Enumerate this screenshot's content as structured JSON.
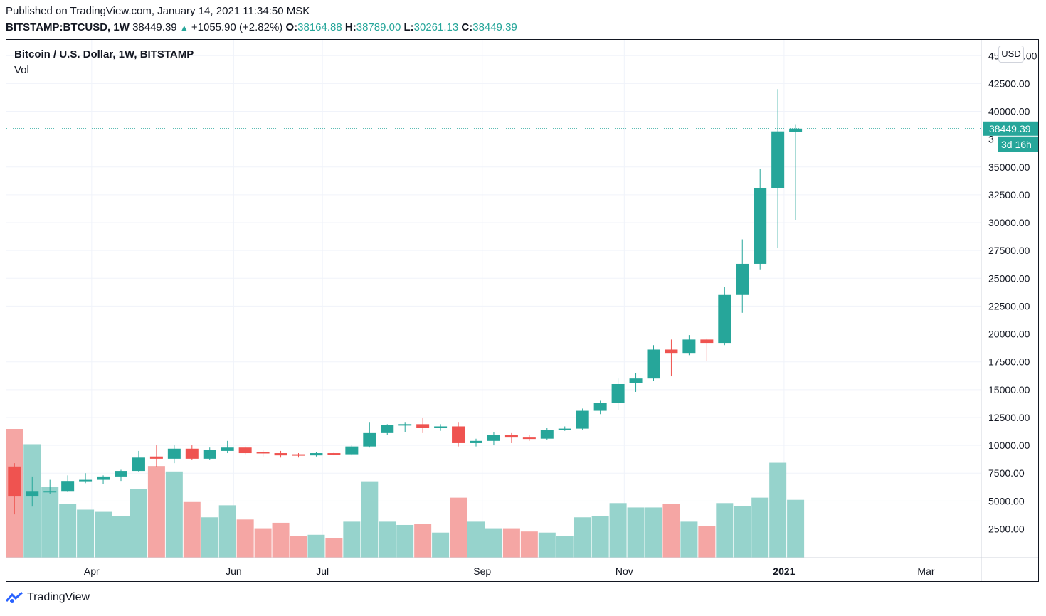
{
  "header": {
    "published": "Published on TradingView.com, January 14, 2021 11:34:50 MSK",
    "symbol": "BITSTAMP:BTCUSD, 1W",
    "last": "38449.39",
    "change": "+1055.90 (+2.82%)",
    "o_label": "O:",
    "o_value": "38164.88",
    "h_label": "H:",
    "h_value": "38789.00",
    "l_label": "L:",
    "l_value": "30261.13",
    "c_label": "C:",
    "c_value": "38449.39"
  },
  "legend": {
    "title": "Bitcoin / U.S. Dollar, 1W, BITSTAMP",
    "vol": "Vol"
  },
  "currency_button": "USD",
  "price_label": "38449.39",
  "countdown_label": "3d 16h",
  "footer": {
    "brand": "TradingView"
  },
  "colors": {
    "up": "#26a69a",
    "down": "#ef5350",
    "vol_up": "#96d3cc",
    "vol_down": "#f5a6a4",
    "grid": "#f0f3fa"
  },
  "chart_data": {
    "type": "candlestick",
    "title": "Bitcoin / U.S. Dollar, 1W, BITSTAMP",
    "ylim": [
      0,
      45000
    ],
    "y_ticks": [
      2500,
      5000,
      7500,
      10000,
      12500,
      15000,
      17500,
      20000,
      22500,
      25000,
      27500,
      30000,
      32500,
      35000,
      40000,
      42500
    ],
    "y_tick_labels": [
      "2500.00",
      "5000.00",
      "7500.00",
      "10000.00",
      "12500.00",
      "15000.00",
      "17500.00",
      "20000.00",
      "22500.00",
      "25000.00",
      "27500.00",
      "30000.00",
      "32500.00",
      "35000.00",
      "40000.00",
      "42500.00"
    ],
    "partial_tick_labels": [
      "45",
      ".00",
      "3"
    ],
    "x_labels": [
      {
        "label": "Apr",
        "index": 4.35
      },
      {
        "label": "Jun",
        "index": 12.35
      },
      {
        "label": "Jul",
        "index": 17.35
      },
      {
        "label": "Sep",
        "index": 26.35
      },
      {
        "label": "Nov",
        "index": 34.35
      },
      {
        "label": "2021",
        "index": 43.35
      },
      {
        "label": "Mar",
        "index": 51.35
      }
    ],
    "candles": [
      {
        "o": 8100,
        "h": 8400,
        "l": 3800,
        "c": 5400
      },
      {
        "o": 5400,
        "h": 7200,
        "l": 4500,
        "c": 5900
      },
      {
        "o": 5900,
        "h": 6900,
        "l": 5600,
        "c": 5900
      },
      {
        "o": 5900,
        "h": 7300,
        "l": 5800,
        "c": 6800
      },
      {
        "o": 6800,
        "h": 7500,
        "l": 6600,
        "c": 6900
      },
      {
        "o": 6900,
        "h": 7300,
        "l": 6500,
        "c": 7200
      },
      {
        "o": 7200,
        "h": 7800,
        "l": 6800,
        "c": 7700
      },
      {
        "o": 7700,
        "h": 9500,
        "l": 7600,
        "c": 8900
      },
      {
        "o": 9000,
        "h": 10000,
        "l": 8100,
        "c": 8800
      },
      {
        "o": 8800,
        "h": 10000,
        "l": 8400,
        "c": 9700
      },
      {
        "o": 9700,
        "h": 10000,
        "l": 8700,
        "c": 8800
      },
      {
        "o": 8800,
        "h": 9800,
        "l": 8700,
        "c": 9600
      },
      {
        "o": 9500,
        "h": 10400,
        "l": 9300,
        "c": 9800
      },
      {
        "o": 9800,
        "h": 9900,
        "l": 9200,
        "c": 9300
      },
      {
        "o": 9400,
        "h": 9600,
        "l": 9000,
        "c": 9300
      },
      {
        "o": 9300,
        "h": 9500,
        "l": 8900,
        "c": 9100
      },
      {
        "o": 9200,
        "h": 9300,
        "l": 8900,
        "c": 9100
      },
      {
        "o": 9100,
        "h": 9400,
        "l": 9000,
        "c": 9300
      },
      {
        "o": 9300,
        "h": 9400,
        "l": 9100,
        "c": 9200
      },
      {
        "o": 9200,
        "h": 10000,
        "l": 9100,
        "c": 9900
      },
      {
        "o": 9900,
        "h": 12100,
        "l": 9800,
        "c": 11100
      },
      {
        "o": 11100,
        "h": 11900,
        "l": 10900,
        "c": 11800
      },
      {
        "o": 11800,
        "h": 12100,
        "l": 11200,
        "c": 11900
      },
      {
        "o": 11900,
        "h": 12500,
        "l": 11100,
        "c": 11600
      },
      {
        "o": 11600,
        "h": 11900,
        "l": 11300,
        "c": 11700
      },
      {
        "o": 11700,
        "h": 12100,
        "l": 9900,
        "c": 10200
      },
      {
        "o": 10200,
        "h": 10600,
        "l": 9900,
        "c": 10400
      },
      {
        "o": 10400,
        "h": 11200,
        "l": 10000,
        "c": 10900
      },
      {
        "o": 10900,
        "h": 11100,
        "l": 10200,
        "c": 10700
      },
      {
        "o": 10700,
        "h": 10900,
        "l": 10400,
        "c": 10600
      },
      {
        "o": 10600,
        "h": 11600,
        "l": 10500,
        "c": 11400
      },
      {
        "o": 11400,
        "h": 11700,
        "l": 11300,
        "c": 11500
      },
      {
        "o": 11500,
        "h": 13300,
        "l": 11400,
        "c": 13100
      },
      {
        "o": 13100,
        "h": 14000,
        "l": 12800,
        "c": 13800
      },
      {
        "o": 13800,
        "h": 16000,
        "l": 13200,
        "c": 15500
      },
      {
        "o": 15600,
        "h": 16500,
        "l": 14800,
        "c": 16000
      },
      {
        "o": 16000,
        "h": 19000,
        "l": 15800,
        "c": 18600
      },
      {
        "o": 18600,
        "h": 19500,
        "l": 16200,
        "c": 18300
      },
      {
        "o": 18300,
        "h": 19900,
        "l": 18100,
        "c": 19500
      },
      {
        "o": 19500,
        "h": 19600,
        "l": 17600,
        "c": 19200
      },
      {
        "o": 19200,
        "h": 24200,
        "l": 19000,
        "c": 23500
      },
      {
        "o": 23500,
        "h": 28500,
        "l": 21900,
        "c": 26300
      },
      {
        "o": 26300,
        "h": 34800,
        "l": 25800,
        "c": 33100
      },
      {
        "o": 33100,
        "h": 42000,
        "l": 27700,
        "c": 38200
      },
      {
        "o": 38164.88,
        "h": 38789.0,
        "l": 30261.13,
        "c": 38449.39
      }
    ],
    "volume": [
      11800,
      10400,
      6500,
      4900,
      4400,
      4200,
      3800,
      6300,
      8400,
      7900,
      5100,
      3700,
      4800,
      3500,
      2700,
      3200,
      2000,
      2100,
      1800,
      3300,
      7000,
      3300,
      3000,
      3100,
      2300,
      5500,
      3300,
      2700,
      2700,
      2400,
      2300,
      2000,
      3700,
      3800,
      5000,
      4600,
      4600,
      4900,
      3300,
      2900,
      5000,
      4700,
      5500,
      8700,
      5300
    ],
    "scale_note": "volume bars use a separate overlay scale; max bar ~ 11800"
  }
}
